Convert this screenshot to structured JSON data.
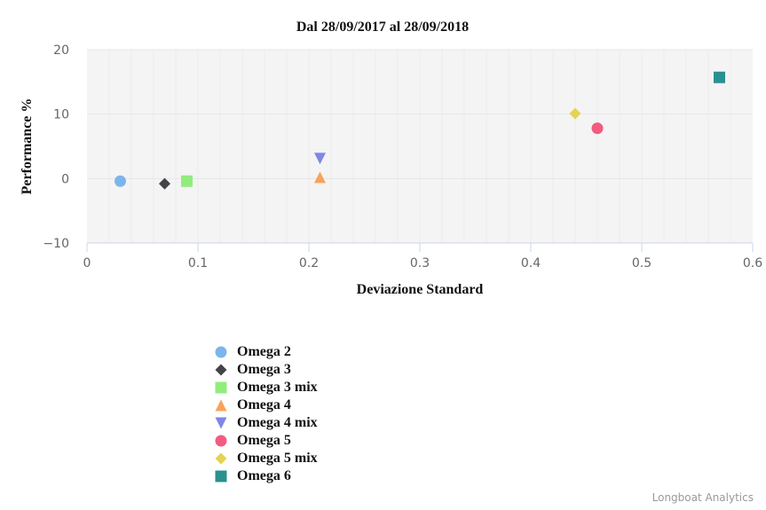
{
  "chart_data": {
    "type": "scatter",
    "title": "Dal 28/09/2017 al 28/09/2018",
    "xlabel": "Deviazione Standard",
    "ylabel": "Performance %",
    "xlim": [
      0,
      0.6
    ],
    "ylim": [
      -10,
      20
    ],
    "xticks": [
      "0",
      "0.1",
      "0.2",
      "0.3",
      "0.4",
      "0.5",
      "0.6"
    ],
    "yticks": [
      "20",
      "10",
      "0",
      "−10"
    ],
    "grid": true,
    "legend_position": "bottom-left",
    "series": [
      {
        "name": "Omega 2",
        "symbol": "circle",
        "color": "#7cb5ec",
        "x": 0.03,
        "y": -0.4
      },
      {
        "name": "Omega 3",
        "symbol": "diamond",
        "color": "#434348",
        "x": 0.07,
        "y": -0.8
      },
      {
        "name": "Omega 3 mix",
        "symbol": "square",
        "color": "#90ed7d",
        "x": 0.09,
        "y": -0.4
      },
      {
        "name": "Omega 4",
        "symbol": "triangle",
        "color": "#f7a35c",
        "x": 0.21,
        "y": 0.2
      },
      {
        "name": "Omega 4 mix",
        "symbol": "triangle-down",
        "color": "#8085e9",
        "x": 0.21,
        "y": 3.1
      },
      {
        "name": "Omega 5",
        "symbol": "circle",
        "color": "#f15c80",
        "x": 0.46,
        "y": 7.8
      },
      {
        "name": "Omega 5 mix",
        "symbol": "diamond",
        "color": "#e4d354",
        "x": 0.44,
        "y": 10.1
      },
      {
        "name": "Omega 6",
        "symbol": "square",
        "color": "#2b908f",
        "x": 0.57,
        "y": 15.7
      }
    ]
  },
  "credits": "Longboat Analytics",
  "colors": {
    "plot_background": "#f4f4f4",
    "grid": "#e6e6e6",
    "axis_line": "#ccd6eb"
  }
}
